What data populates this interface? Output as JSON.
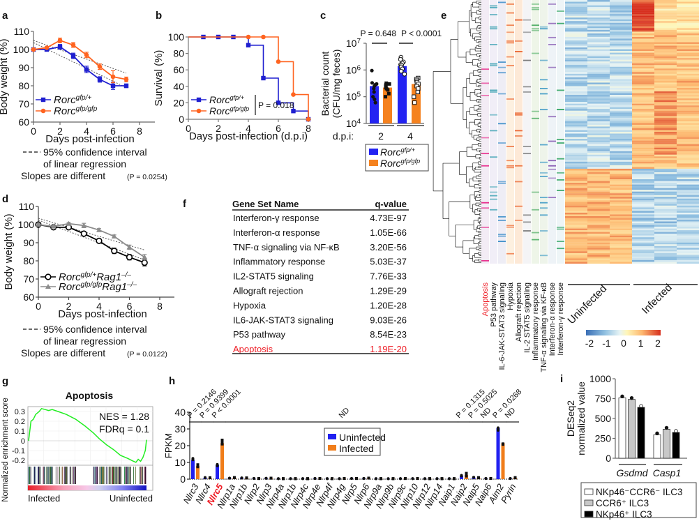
{
  "panel_letters": [
    "a",
    "b",
    "c",
    "d",
    "e",
    "f",
    "g",
    "h",
    "i"
  ],
  "chart_data": [
    {
      "panel": "a",
      "type": "line",
      "xlabel": "Days post-infection",
      "ylabel": "Body weight (%)",
      "xlim": [
        0,
        8
      ],
      "ylim": [
        60,
        110
      ],
      "xticks": [
        0,
        2,
        4,
        6,
        8
      ],
      "yticks": [
        60,
        70,
        80,
        90,
        100,
        110
      ],
      "series": [
        {
          "name": "Rorc",
          "sup": "gfp/+",
          "color": "#1f1fd0",
          "marker": "square",
          "x": [
            0,
            1,
            2,
            3,
            4,
            5,
            6,
            7
          ],
          "y": [
            100,
            100,
            101.5,
            96.5,
            89,
            83.5,
            80,
            80
          ],
          "err": [
            0.8,
            0.5,
            1.3,
            1.5,
            1.8,
            1.5,
            2,
            1
          ]
        },
        {
          "name": "Rorc",
          "sup": "gfp/gfp",
          "color": "#ff6420",
          "marker": "circle",
          "x": [
            0,
            1,
            2,
            3,
            4,
            5,
            6,
            7
          ],
          "y": [
            100,
            101,
            105,
            102.5,
            97,
            90.5,
            85,
            83.5
          ],
          "err": [
            0.5,
            0.5,
            1.3,
            1.3,
            1.5,
            1.5,
            3.3,
            1.3
          ]
        }
      ],
      "ci_lines": [
        [
          0,
          105,
          7,
          87
        ],
        [
          0,
          103.8,
          7,
          79
        ]
      ],
      "ci_legend_1": "95% confidence interval",
      "ci_legend_2": "of linear regression",
      "slopes_text": "Slopes are different",
      "slopes_p": "(P = 0.0254)"
    },
    {
      "panel": "b",
      "type": "step",
      "xlabel": "Days post-infection (d.p.i)",
      "ylabel": "Survival (%)",
      "xlim": [
        0,
        8
      ],
      "ylim": [
        0,
        100
      ],
      "xticks": [
        0,
        2,
        4,
        6,
        8
      ],
      "yticks": [
        0,
        20,
        40,
        60,
        80,
        100
      ],
      "series": [
        {
          "name": "Rorc",
          "sup": "gfp/+",
          "color": "#1f1fd0",
          "marker": "square",
          "x": [
            0,
            1,
            2,
            3,
            4,
            5,
            6,
            7,
            8
          ],
          "y": [
            100,
            100,
            100,
            100,
            90,
            50,
            20,
            10,
            0
          ]
        },
        {
          "name": "Rorc",
          "sup": "gfp/gfp",
          "color": "#ff6420",
          "marker": "circle",
          "x": [
            0,
            4,
            5,
            6,
            7,
            8
          ],
          "y": [
            100,
            100,
            100,
            70,
            30,
            0
          ]
        }
      ],
      "p_text": "P = 0.018"
    },
    {
      "panel": "c",
      "type": "bar",
      "scale": "log",
      "ylabel_1": "Bacterial count",
      "ylabel_2": "(CFU/mg feces)",
      "ylim_exp": [
        4,
        7
      ],
      "yticks": [
        {
          "base": "10",
          "exp": "4"
        },
        {
          "base": "10",
          "exp": "5"
        },
        {
          "base": "10",
          "exp": "6"
        },
        {
          "base": "10",
          "exp": "7"
        }
      ],
      "xlabel": "d.p.i:",
      "categories": [
        "2",
        "4"
      ],
      "series": [
        {
          "name": "Rorc",
          "sup": "gfp/+",
          "color": "#2323f2",
          "values": [
            250000,
            1400000
          ],
          "points": [
            [
              950000,
              330000,
              300000,
              280000,
              250000,
              200000,
              150000,
              100000,
              80000,
              60000
            ],
            [
              3000000,
              2500000,
              2000000,
              1800000,
              1600000,
              1500000,
              1300000,
              1100000,
              900000,
              700000
            ]
          ]
        },
        {
          "name": "Rorc",
          "sup": "gfp/gfp",
          "color": "#f5821f",
          "values": [
            220000,
            300000
          ],
          "points": [
            [
              320000,
              300000,
              280000,
              250000,
              220000,
              200000,
              180000,
              130000,
              100000
            ],
            [
              500000,
              450000,
              400000,
              350000,
              300000,
              250000,
              200000,
              150000,
              100000,
              60000
            ]
          ]
        }
      ],
      "p_values": [
        "P = 0.648",
        "P < 0.0001"
      ]
    },
    {
      "panel": "d",
      "type": "line",
      "xlabel": "Days post-infection",
      "ylabel": "Body weight (%)",
      "xlim": [
        0,
        8
      ],
      "ylim": [
        60,
        110
      ],
      "xticks": [
        0,
        2,
        4,
        6,
        8
      ],
      "yticks": [
        60,
        70,
        80,
        90,
        100,
        110
      ],
      "series": [
        {
          "name": "Rorc",
          "sup": "gfp/+",
          "name2": "Rag1",
          "sup2": "–/–",
          "color": "#000000",
          "marker": "open-circle",
          "x": [
            0,
            1,
            2,
            3,
            4,
            5,
            6,
            7
          ],
          "y": [
            100,
            98.5,
            98.5,
            95,
            91,
            85.5,
            82,
            79
          ],
          "err": [
            0.5,
            0.5,
            0.8,
            0.8,
            1,
            1.5,
            1.5,
            1.8
          ]
        },
        {
          "name": "Rorc",
          "sup": "gfp/gfp",
          "name2": "Rag1",
          "sup2": "–/–",
          "color": "#8c8c8c",
          "marker": "triangle",
          "x": [
            0,
            1,
            2,
            3,
            4,
            5,
            6,
            7
          ],
          "y": [
            100,
            99,
            100.5,
            99.5,
            97,
            93.5,
            87.5,
            82
          ],
          "err": [
            0.5,
            0.5,
            0.8,
            1.2,
            0.8,
            0.8,
            1.2,
            1.5
          ]
        }
      ],
      "ci_lines": [
        [
          0,
          103.5,
          7,
          86
        ],
        [
          0,
          102.5,
          7,
          80.5
        ]
      ],
      "ci_legend_1": "95% confidence interval",
      "ci_legend_2": "of linear regression",
      "slopes_text": "Slopes are different",
      "slopes_p": "(P = 0.0122)"
    },
    {
      "panel": "e",
      "type": "heatmap",
      "column_groups": [
        "Uninfected",
        "Infected"
      ],
      "colorbar_ticks": [
        "-2",
        "-1",
        "0",
        "1",
        "2"
      ],
      "colorbar_range": [
        -2,
        2
      ],
      "annotation_tracks": [
        {
          "label": "Apoptosis",
          "color": "#e7298a",
          "bg": "#f3ecf5",
          "highlight": "#ee1c25"
        },
        {
          "label": "P53 pathway",
          "color": "#4aa8b8",
          "bg": "#f1eef7"
        },
        {
          "label": "IL-6-JAK-STAT3 signaling",
          "color": "#3d8ec9",
          "bg": "#eeedf5"
        },
        {
          "label": "Hypoxia",
          "color": "#f08050",
          "bg": "#fdf0e0"
        },
        {
          "label": "Allograft rejection",
          "color": "#e8602c",
          "bg": "#fde9d7"
        },
        {
          "label": "IL-2 STAT5 signaling",
          "color": "#777777",
          "bg": "#f4f4f6"
        },
        {
          "label": "Inflammatory response",
          "color": "#55b06a",
          "bg": "#eef5e8"
        },
        {
          "label": "TNF-α signaling via KF-κB",
          "color": "#4aa0c8",
          "bg": "#eef4ea"
        },
        {
          "label": "Interferon-α response",
          "color": "#8a5fb5",
          "bg": "#eef3f7"
        },
        {
          "label": "Interferon-γ response",
          "color": "#2ca25f",
          "bg": "#eef5f7"
        }
      ]
    },
    {
      "panel": "f",
      "type": "table",
      "headers": [
        "Gene Set Name",
        "q-value"
      ],
      "rows": [
        [
          "Interferon-γ response",
          "4.73E-97"
        ],
        [
          "Interferon-α response",
          "1.05E-66"
        ],
        [
          "TNF-α signaling via NF-κB",
          "3.20E-56"
        ],
        [
          "Inflammatory response",
          "5.03E-37"
        ],
        [
          "IL2-STAT5 signaling",
          "7.76E-33"
        ],
        [
          "Allograft rejection",
          "1.29E-29"
        ],
        [
          "Hypoxia",
          "1.20E-28"
        ],
        [
          "IL6-JAK-STAT3 signaling",
          "9.03E-26"
        ],
        [
          "P53 pathway",
          "8.54E-23"
        ],
        [
          "Apoptosis",
          "1.19E-20"
        ]
      ],
      "highlight_row": 9,
      "highlight_color": "#ee1c25"
    },
    {
      "panel": "g",
      "type": "line",
      "title": "Apoptosis",
      "ylabel": "Normalized enrichment score",
      "ylim": [
        -0.25,
        0.35
      ],
      "yticks": [
        {
          "v": 0.3,
          "t": "0.3"
        },
        {
          "v": 0.2,
          "t": "0.2"
        },
        {
          "v": 0.1,
          "t": "0.1"
        },
        {
          "v": 0,
          "t": "0"
        },
        {
          "v": -0.1,
          "t": "-0.1"
        },
        {
          "v": -0.2,
          "t": "-0.2"
        }
      ],
      "curve": [
        [
          0,
          0
        ],
        [
          0.01,
          0.1
        ],
        [
          0.02,
          0.2
        ],
        [
          0.04,
          0.22
        ],
        [
          0.06,
          0.27
        ],
        [
          0.09,
          0.3
        ],
        [
          0.11,
          0.33
        ],
        [
          0.14,
          0.32
        ],
        [
          0.17,
          0.31
        ],
        [
          0.2,
          0.32
        ],
        [
          0.25,
          0.3
        ],
        [
          0.32,
          0.27
        ],
        [
          0.4,
          0.22
        ],
        [
          0.48,
          0.15
        ],
        [
          0.55,
          0.08
        ],
        [
          0.6,
          0.02
        ],
        [
          0.66,
          -0.04
        ],
        [
          0.72,
          -0.09
        ],
        [
          0.78,
          -0.15
        ],
        [
          0.84,
          -0.18
        ],
        [
          0.89,
          -0.21
        ],
        [
          0.91,
          -0.22
        ],
        [
          0.93,
          -0.19
        ],
        [
          0.95,
          -0.21
        ],
        [
          0.97,
          -0.17
        ],
        [
          0.99,
          -0.1
        ],
        [
          1,
          0.01
        ]
      ],
      "curve_color": "#22ee22",
      "nes": "NES = 1.28",
      "fdr": "FDRq = 0.1",
      "x_left": "Infected",
      "x_right": "Uninfected"
    },
    {
      "panel": "h",
      "type": "bar",
      "ylabel": "FPKM",
      "ylim": [
        0,
        40
      ],
      "yticks": [
        0,
        10,
        20,
        30,
        40
      ],
      "categories": [
        "Nlrc3",
        "Nlrc4",
        "Nlrc5",
        "Nlrp1a",
        "Nlrp1b",
        "Nlrp2",
        "Nlrp3",
        "Nlrp4a",
        "Nlrp1b",
        "Nlrp4c",
        "Nlrp4e",
        "Nlrp4f",
        "Nlrp4g",
        "Nlrp5",
        "Nlrp6",
        "Nlrp9a",
        "Nlrp9b",
        "Nlrp9c",
        "Nlrp10",
        "Nlrp12",
        "Nlrp14",
        "Naip1",
        "Naip2",
        "Naip5",
        "Naip6",
        "Aim2",
        "Pyrin"
      ],
      "highlight_category": 2,
      "highlight_color": "#ee1c25",
      "series": [
        {
          "name": "Uninfected",
          "color": "#2020f0",
          "values": [
            11.5,
            0.8,
            8.5,
            0.5,
            0.6,
            0.3,
            0.4,
            0.2,
            0.2,
            0.2,
            0.3,
            0.2,
            0.2,
            0.3,
            0.3,
            0.2,
            0.2,
            0.2,
            0.2,
            0.2,
            0.2,
            0.2,
            2,
            1,
            0.3,
            30.5,
            0.3
          ]
        },
        {
          "name": "Infected",
          "color": "#f07d1a",
          "values": [
            8,
            0.8,
            21.5,
            0.8,
            0.6,
            0.3,
            0.5,
            0.2,
            0.2,
            0.2,
            0.3,
            0.2,
            0.3,
            0.3,
            0.5,
            0.2,
            0.2,
            0.3,
            0.3,
            0.2,
            0.2,
            0.2,
            2.5,
            0.8,
            0.3,
            21.5,
            0.8
          ]
        }
      ],
      "annotations": [
        {
          "from": 0,
          "to": 0,
          "text": "P = 0.2146"
        },
        {
          "from": 1,
          "to": 1,
          "text": "P = 0.9399"
        },
        {
          "from": 2,
          "to": 2,
          "text": "P < 0.0001"
        },
        {
          "from": 3,
          "to": 21,
          "text": "ND"
        },
        {
          "from": 22,
          "to": 22,
          "text": "P = 0.1315"
        },
        {
          "from": 23,
          "to": 23,
          "text": "P = 0.5025"
        },
        {
          "from": 24,
          "to": 24,
          "text": "ND"
        },
        {
          "from": 25,
          "to": 25,
          "text": "P = 0.0268"
        },
        {
          "from": 26,
          "to": 26,
          "text": "ND"
        }
      ]
    },
    {
      "panel": "i",
      "type": "bar",
      "ylabel_1": "DESeq2",
      "ylabel_2": "normalized value",
      "ylim": [
        0,
        1000
      ],
      "yticks": [
        0,
        250,
        500,
        750,
        1000
      ],
      "categories": [
        "Gsdmd",
        "Casp1"
      ],
      "series": [
        {
          "name": "NKp46⁻CCR6⁻ ILC3",
          "color": "#ffffff",
          "values": [
            760,
            295
          ]
        },
        {
          "name": "CCR6⁺ ILC3",
          "color": "#c8c8c8",
          "values": [
            740,
            365
          ]
        },
        {
          "name": "NKp46⁺ ILC3",
          "color": "#000000",
          "values": [
            640,
            325
          ]
        }
      ]
    }
  ]
}
